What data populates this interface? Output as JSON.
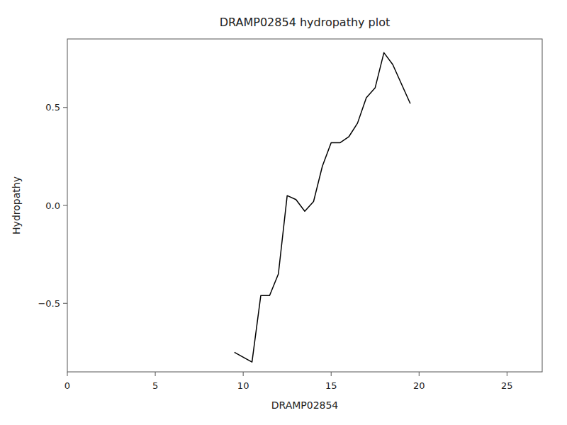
{
  "chart_data": {
    "type": "line",
    "title": "DRAMP02854 hydropathy plot",
    "x_label": "DRAMP02854",
    "y_label": "Hydropathy",
    "x": [
      9.5,
      10.5,
      11.0,
      11.5,
      12.0,
      12.5,
      13.0,
      13.5,
      14.0,
      14.5,
      15.0,
      15.5,
      16.0,
      16.5,
      17.0,
      17.5,
      18.0,
      18.5,
      19.5
    ],
    "values": [
      -0.75,
      -0.8,
      -0.46,
      -0.46,
      -0.35,
      0.05,
      0.03,
      -0.03,
      0.02,
      0.2,
      0.32,
      0.32,
      0.35,
      0.42,
      0.55,
      0.6,
      0.78,
      0.72,
      0.52
    ],
    "color": "#000000",
    "xlim": [
      0,
      27
    ],
    "ylim": [
      -0.85,
      0.85
    ],
    "xticks": [
      0,
      5,
      10,
      15,
      20,
      25
    ],
    "yticks": [
      {
        "value": -0.5,
        "label": "−0.5"
      },
      {
        "value": 0.0,
        "label": "0.0"
      },
      0.5
    ],
    "grid": false
  }
}
